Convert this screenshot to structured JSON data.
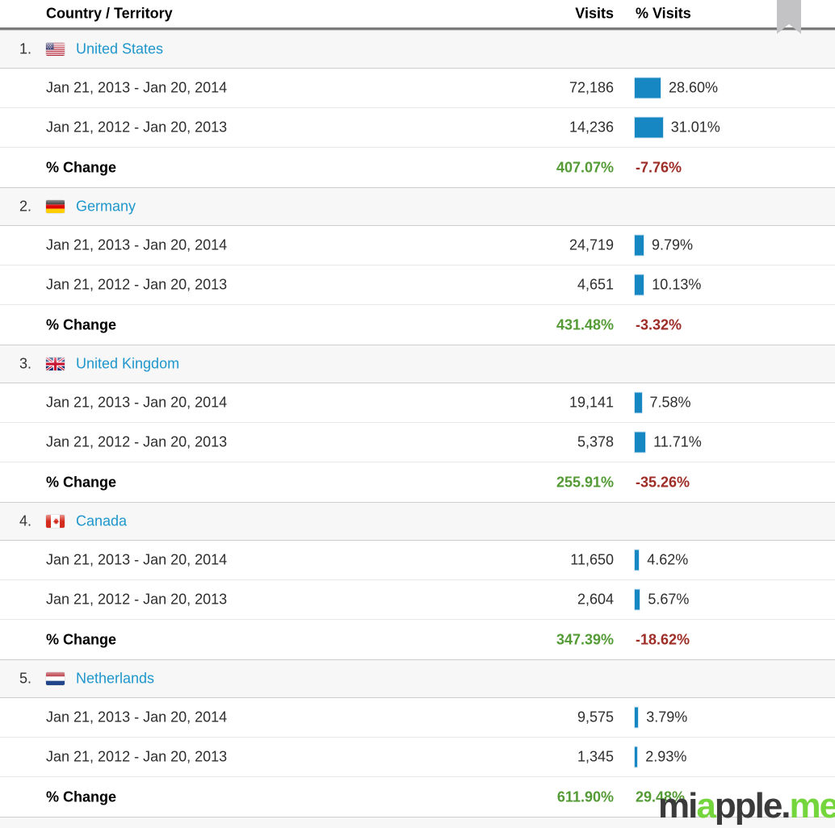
{
  "header": {
    "country_col": "Country / Territory",
    "visits_col": "Visits",
    "pct_visits_col": "% Visits"
  },
  "periods": {
    "current": "Jan 21, 2013 - Jan 20, 2014",
    "previous": "Jan 21, 2012 - Jan 20, 2013"
  },
  "change_label": "% Change",
  "colors": {
    "bar_blue": "#1787c3",
    "link_blue": "#1f96cc",
    "positive_green": "#549b36",
    "negative_red": "#9d2d26"
  },
  "countries": [
    {
      "rank": "1.",
      "name": "United States",
      "flag_icon": "us-flag",
      "current": {
        "visits": "72,186",
        "pct_visits": "28.60%",
        "pct_value": 28.6
      },
      "previous": {
        "visits": "14,236",
        "pct_visits": "31.01%",
        "pct_value": 31.01
      },
      "change": {
        "visits": "407.07%",
        "visits_dir": "pos",
        "pct_visits": "-7.76%",
        "pct_dir": "neg"
      }
    },
    {
      "rank": "2.",
      "name": "Germany",
      "flag_icon": "germany-flag",
      "current": {
        "visits": "24,719",
        "pct_visits": "9.79%",
        "pct_value": 9.79
      },
      "previous": {
        "visits": "4,651",
        "pct_visits": "10.13%",
        "pct_value": 10.13
      },
      "change": {
        "visits": "431.48%",
        "visits_dir": "pos",
        "pct_visits": "-3.32%",
        "pct_dir": "neg"
      }
    },
    {
      "rank": "3.",
      "name": "United Kingdom",
      "flag_icon": "uk-flag",
      "current": {
        "visits": "19,141",
        "pct_visits": "7.58%",
        "pct_value": 7.58
      },
      "previous": {
        "visits": "5,378",
        "pct_visits": "11.71%",
        "pct_value": 11.71
      },
      "change": {
        "visits": "255.91%",
        "visits_dir": "pos",
        "pct_visits": "-35.26%",
        "pct_dir": "neg"
      }
    },
    {
      "rank": "4.",
      "name": "Canada",
      "flag_icon": "canada-flag",
      "current": {
        "visits": "11,650",
        "pct_visits": "4.62%",
        "pct_value": 4.62
      },
      "previous": {
        "visits": "2,604",
        "pct_visits": "5.67%",
        "pct_value": 5.67
      },
      "change": {
        "visits": "347.39%",
        "visits_dir": "pos",
        "pct_visits": "-18.62%",
        "pct_dir": "neg"
      }
    },
    {
      "rank": "5.",
      "name": "Netherlands",
      "flag_icon": "netherlands-flag",
      "current": {
        "visits": "9,575",
        "pct_visits": "3.79%",
        "pct_value": 3.79
      },
      "previous": {
        "visits": "1,345",
        "pct_visits": "2.93%",
        "pct_value": 2.93
      },
      "change": {
        "visits": "611.90%",
        "visits_dir": "pos",
        "pct_visits": "29.48%",
        "pct_dir": "pos"
      }
    }
  ],
  "watermark": {
    "seg1": "mi",
    "seg2": "a",
    "seg3": "pple.",
    "seg4": "me"
  }
}
